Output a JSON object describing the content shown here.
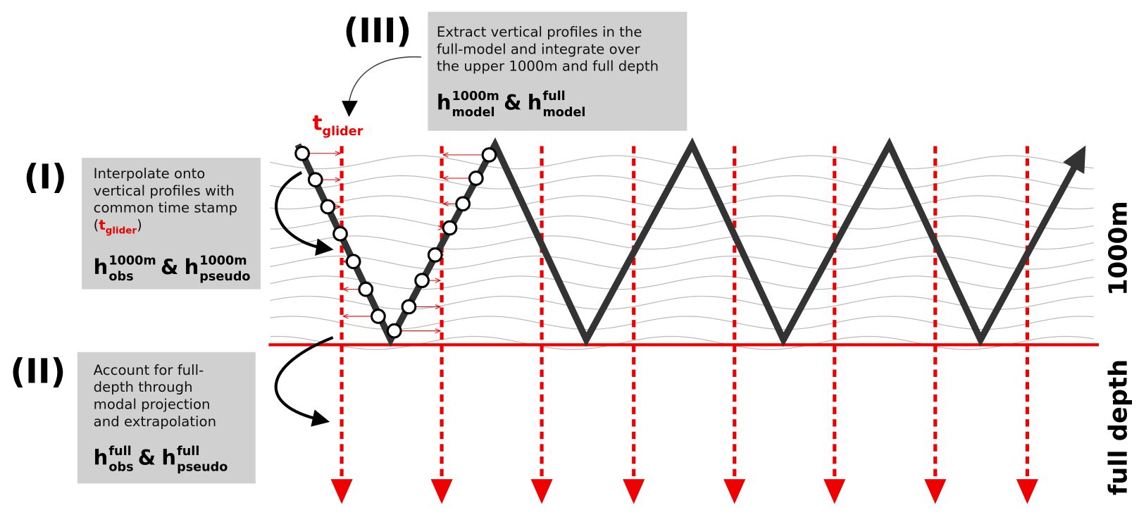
{
  "labels": {
    "step_1": "(I)",
    "step_2": "(II)",
    "step_3": "(III)",
    "depth_upper": "1000m",
    "depth_full": "full depth"
  },
  "glider_time": {
    "base": "t",
    "sub": "glider"
  },
  "boxes": [
    {
      "lines": [
        "Interpolate onto",
        "vertical profiles with",
        "common time stamp"
      ],
      "time_stamp": {
        "open": "(",
        "base": "t",
        "sub": "glider",
        "close": ")"
      },
      "formula": {
        "left": {
          "base": "h",
          "sup": "1000m",
          "sub": "obs"
        },
        "joiner": "&",
        "right": {
          "base": "h",
          "sup": "1000m",
          "sub": "pseudo"
        }
      }
    },
    {
      "lines": [
        "Account for full-",
        "depth through",
        "modal projection",
        "and extrapolation"
      ],
      "formula": {
        "left": {
          "base": "h",
          "sup": "full",
          "sub": "obs"
        },
        "joiner": "&",
        "right": {
          "base": "h",
          "sup": "full",
          "sub": "pseudo"
        }
      }
    },
    {
      "lines": [
        "Extract vertical profiles in the",
        "full-model and integrate over",
        "the upper 1000m and full depth"
      ],
      "formula": {
        "left": {
          "base": "h",
          "sup": "1000m",
          "sub": "model"
        },
        "joiner": "&",
        "right": {
          "base": "h",
          "sup": "full",
          "sub": "model"
        }
      }
    }
  ]
}
